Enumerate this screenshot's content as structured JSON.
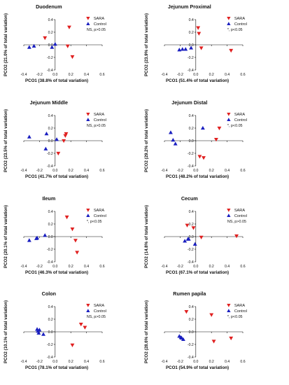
{
  "colors": {
    "sara": "#e02020",
    "control": "#1a1fc0",
    "axis": "#111111"
  },
  "markers": {
    "sara": "triangle-down",
    "control": "triangle-up"
  },
  "chart_data": [
    {
      "type": "scatter",
      "title": "Duodenum",
      "xlabel": "PCO1 (38.8% of total variation)",
      "ylabel": "PCO2 (21.0% of total variation)",
      "xlim": [
        -0.4,
        0.6
      ],
      "ylim": [
        -0.4,
        0.4
      ],
      "xticks": [
        "-0.4",
        "-0.2",
        "0.0",
        "0.2",
        "0.4",
        "0.6"
      ],
      "yticks": [
        "-0.4",
        "-0.2",
        "0.0",
        "0.2",
        "0.4"
      ],
      "legend": [
        "SARA",
        "Control"
      ],
      "significance": "NS, p>0.05",
      "series": [
        {
          "name": "SARA",
          "points": [
            [
              -0.13,
              0.11
            ],
            [
              0.18,
              0.28
            ],
            [
              0.16,
              -0.02
            ],
            [
              0.22,
              -0.19
            ]
          ]
        },
        {
          "name": "Control",
          "points": [
            [
              -0.33,
              -0.04
            ],
            [
              -0.27,
              -0.02
            ],
            [
              -0.04,
              -0.04
            ],
            [
              0.0,
              0.01
            ]
          ]
        }
      ]
    },
    {
      "type": "scatter",
      "title": "Jejunum Proximal",
      "xlabel": "PCO1 (51.4% of total variation)",
      "ylabel": "PCO2 (23.9% of total variation)",
      "xlim": [
        -0.4,
        0.6
      ],
      "ylim": [
        -0.4,
        0.4
      ],
      "xticks": [
        "-0.4",
        "-0.2",
        "0.0",
        "0.2",
        "0.4",
        "0.6"
      ],
      "yticks": [
        "-0.4",
        "-0.2",
        "0.0",
        "0.2",
        "0.4"
      ],
      "legend": [
        "SARA",
        "Control"
      ],
      "significance": "*, p<0.05",
      "series": [
        {
          "name": "SARA",
          "points": [
            [
              0.03,
              0.27
            ],
            [
              0.04,
              0.18
            ],
            [
              0.07,
              -0.05
            ],
            [
              0.45,
              -0.09
            ]
          ]
        },
        {
          "name": "Control",
          "points": [
            [
              -0.21,
              -0.08
            ],
            [
              -0.17,
              -0.07
            ],
            [
              -0.13,
              -0.07
            ],
            [
              -0.06,
              -0.05
            ]
          ]
        }
      ]
    },
    {
      "type": "scatter",
      "title": "Jejunum Middle",
      "xlabel": "PCO1 (41.7% of total variation)",
      "ylabel": "PCO2 (23.5% of total variation)",
      "xlim": [
        -0.4,
        0.6
      ],
      "ylim": [
        -0.4,
        0.4
      ],
      "xticks": [
        "-0.4",
        "-0.2",
        "0.0",
        "0.2",
        "0.4",
        "0.6"
      ],
      "yticks": [
        "-0.4",
        "-0.2",
        "0.0",
        "0.2",
        "0.4"
      ],
      "legend": [
        "SARA",
        "Control"
      ],
      "significance": "NS, p>0.05",
      "series": [
        {
          "name": "SARA",
          "points": [
            [
              0.14,
              0.11
            ],
            [
              0.13,
              0.08
            ],
            [
              0.11,
              0.0
            ],
            [
              0.04,
              -0.2
            ]
          ]
        },
        {
          "name": "Control",
          "points": [
            [
              -0.33,
              0.06
            ],
            [
              -0.11,
              0.11
            ],
            [
              -0.12,
              -0.13
            ],
            [
              0.02,
              0.02
            ]
          ]
        }
      ]
    },
    {
      "type": "scatter",
      "title": "Jejunum Distal",
      "xlabel": "PCO1 (48.2% of total variation)",
      "ylabel": "PCO2 (29.2% of total variation)",
      "xlim": [
        -0.4,
        0.6
      ],
      "ylim": [
        -0.4,
        0.4
      ],
      "xticks": [
        "-0.4",
        "-0.2",
        "0.0",
        "0.2",
        "0.4",
        "0.6"
      ],
      "yticks": [
        "-0.4",
        "-0.2",
        "0.0",
        "0.2",
        "0.4"
      ],
      "legend": [
        "SARA",
        "Control"
      ],
      "significance": "*, p<0.05",
      "series": [
        {
          "name": "SARA",
          "points": [
            [
              0.3,
              0.2
            ],
            [
              0.26,
              0.02
            ],
            [
              0.05,
              -0.25
            ],
            [
              0.1,
              -0.27
            ]
          ]
        },
        {
          "name": "Control",
          "points": [
            [
              -0.32,
              0.13
            ],
            [
              -0.29,
              0.01
            ],
            [
              -0.26,
              -0.05
            ],
            [
              0.09,
              0.2
            ]
          ]
        }
      ]
    },
    {
      "type": "scatter",
      "title": "Ileum",
      "xlabel": "PCO1 (46.3% of total variation)",
      "ylabel": "PCO2 (20.1% of total variation)",
      "xlim": [
        -0.4,
        0.6
      ],
      "ylim": [
        -0.4,
        0.4
      ],
      "xticks": [
        "-0.4",
        "-0.2",
        "0.0",
        "0.2",
        "0.4",
        "0.6"
      ],
      "yticks": [
        "-0.4",
        "-0.2",
        "0.0",
        "0.2",
        "0.4"
      ],
      "legend": [
        "SARA",
        "Control"
      ],
      "significance": "*, p<0.05",
      "series": [
        {
          "name": "SARA",
          "points": [
            [
              0.15,
              0.31
            ],
            [
              0.22,
              0.12
            ],
            [
              0.26,
              -0.06
            ],
            [
              0.28,
              -0.25
            ]
          ]
        },
        {
          "name": "Control",
          "points": [
            [
              -0.33,
              -0.06
            ],
            [
              -0.24,
              -0.03
            ],
            [
              -0.23,
              -0.02
            ],
            [
              -0.13,
              0.02
            ]
          ]
        }
      ]
    },
    {
      "type": "scatter",
      "title": "Cecum",
      "xlabel": "PCO1 (67.1% of total variation)",
      "ylabel": "PCO2 (14.8% of total variation)",
      "xlim": [
        -0.4,
        0.6
      ],
      "ylim": [
        -0.4,
        0.4
      ],
      "xticks": [
        "-0.4",
        "-0.2",
        "0.0",
        "0.2",
        "0.4",
        "0.6"
      ],
      "yticks": [
        "-0.4",
        "-0.2",
        "0.0",
        "0.2",
        "0.4"
      ],
      "legend": [
        "SARA",
        "Control"
      ],
      "significance": "NS, p>0.05",
      "series": [
        {
          "name": "SARA",
          "points": [
            [
              -0.11,
              0.18
            ],
            [
              -0.03,
              0.14
            ],
            [
              0.07,
              -0.01
            ],
            [
              0.52,
              0.01
            ]
          ]
        },
        {
          "name": "Control",
          "points": [
            [
              -0.14,
              -0.07
            ],
            [
              -0.1,
              -0.04
            ],
            [
              -0.09,
              -0.04
            ],
            [
              -0.01,
              -0.12
            ]
          ]
        }
      ]
    },
    {
      "type": "scatter",
      "title": "Colon",
      "xlabel": "PCO1 (78.1% of total variation)",
      "ylabel": "PCO2 (10.1% of total variation)",
      "xlim": [
        -0.4,
        0.6
      ],
      "ylim": [
        -0.4,
        0.4
      ],
      "xticks": [
        "-0.4",
        "-0.2",
        "0.0",
        "0.2",
        "0.4",
        "0.6"
      ],
      "yticks": [
        "-0.4",
        "-0.2",
        "0.0",
        "0.2",
        "0.4"
      ],
      "legend": [
        "SARA",
        "Control"
      ],
      "significance": "NS, p>0.05",
      "series": [
        {
          "name": "SARA",
          "points": [
            [
              0.33,
              0.12
            ],
            [
              0.38,
              0.07
            ],
            [
              0.22,
              -0.21
            ]
          ]
        },
        {
          "name": "Control",
          "points": [
            [
              -0.23,
              0.04
            ],
            [
              -0.22,
              0.01
            ],
            [
              -0.21,
              -0.02
            ],
            [
              -0.2,
              0.03
            ],
            [
              -0.15,
              -0.04
            ]
          ]
        }
      ]
    },
    {
      "type": "scatter",
      "title": "Rumen papila",
      "xlabel": "PCO1 (54.9% of total variation)",
      "ylabel": "PCO2 (28.6% of total variation)",
      "xlim": [
        -0.4,
        0.6
      ],
      "ylim": [
        -0.4,
        0.4
      ],
      "xticks": [
        "-0.4",
        "-0.2",
        "0.0",
        "0.2",
        "0.4",
        "0.6"
      ],
      "yticks": [
        "-0.4",
        "-0.2",
        "0.0",
        "0.2",
        "0.4"
      ],
      "legend": [
        "SARA",
        "Control"
      ],
      "significance": "*, p<0.05",
      "series": [
        {
          "name": "SARA",
          "points": [
            [
              -0.12,
              0.32
            ],
            [
              0.2,
              0.27
            ],
            [
              0.23,
              -0.15
            ],
            [
              0.45,
              -0.1
            ]
          ]
        },
        {
          "name": "Control",
          "points": [
            [
              -0.21,
              -0.07
            ],
            [
              -0.19,
              -0.09
            ],
            [
              -0.18,
              -0.1
            ],
            [
              -0.16,
              -0.12
            ]
          ]
        }
      ]
    }
  ]
}
